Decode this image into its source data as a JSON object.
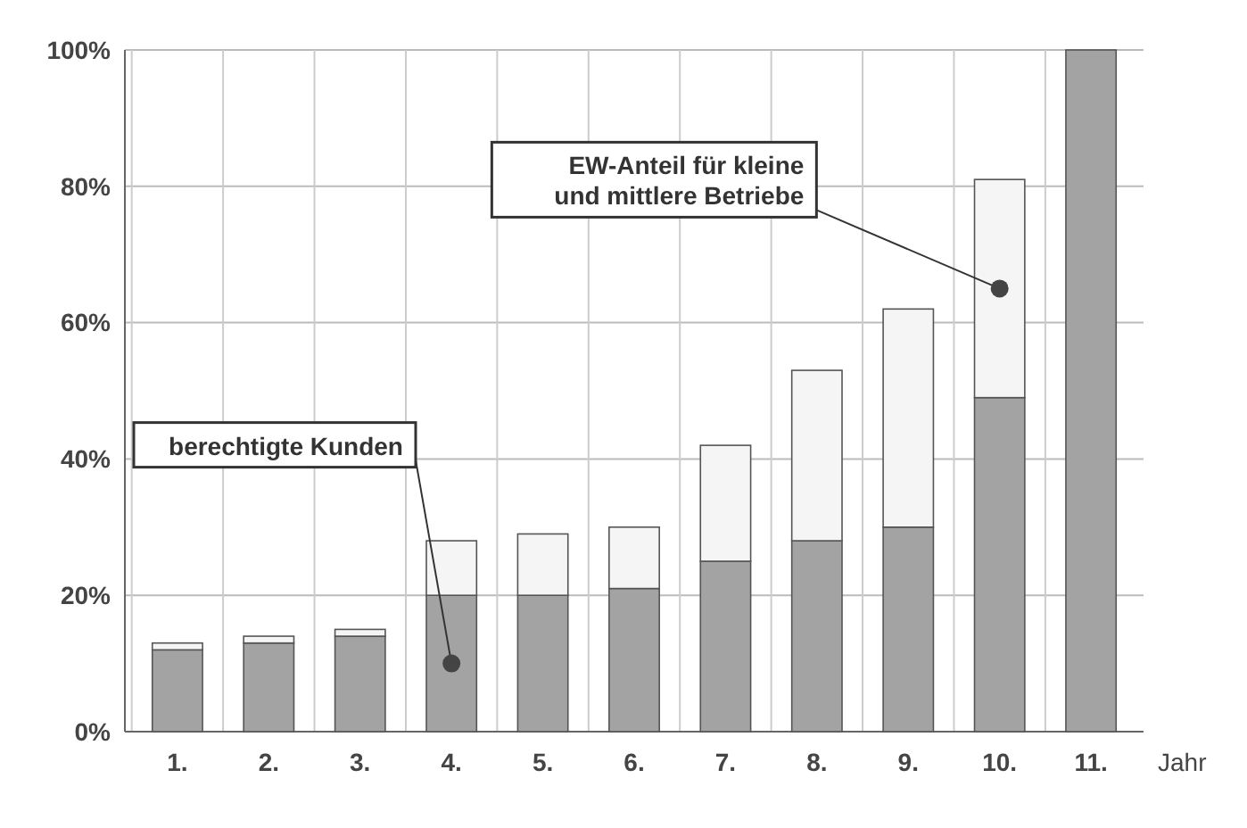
{
  "chart_data": {
    "type": "bar",
    "stacked": true,
    "xlabel": "Jahr",
    "categories": [
      "1.",
      "2.",
      "3.",
      "4.",
      "5.",
      "6.",
      "7.",
      "8.",
      "9.",
      "10.",
      "11."
    ],
    "series": [
      {
        "name": "berechtigte Kunden",
        "color": "#a3a3a3",
        "values": [
          12,
          13,
          14,
          20,
          20,
          21,
          25,
          28,
          30,
          49,
          100
        ]
      },
      {
        "name": "EW-Anteil für kleine und mittlere Betriebe",
        "color": "#f5f5f5",
        "values": [
          1,
          1,
          1,
          8,
          9,
          9,
          17,
          25,
          32,
          32,
          0
        ]
      }
    ],
    "ylim": [
      0,
      100
    ],
    "yticks": [
      {
        "value": 0,
        "label": "0%"
      },
      {
        "value": 20,
        "label": "20%"
      },
      {
        "value": 40,
        "label": "40%"
      },
      {
        "value": 60,
        "label": "60%"
      },
      {
        "value": 80,
        "label": "80%"
      },
      {
        "value": 100,
        "label": "100%"
      }
    ],
    "grid": true
  }
}
